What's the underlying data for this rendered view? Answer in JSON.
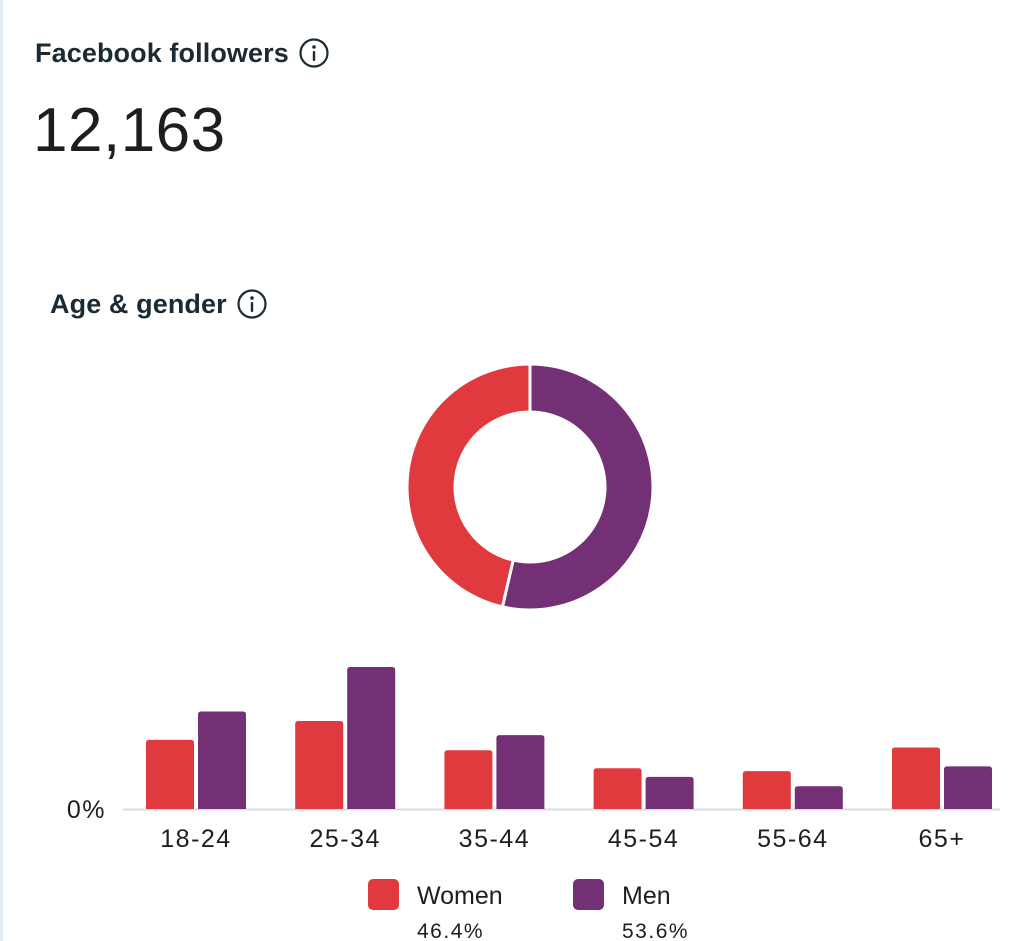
{
  "followers": {
    "title": "Facebook followers",
    "info_icon": "info-icon",
    "count": "12,163"
  },
  "age_gender": {
    "title": "Age & gender",
    "info_icon": "info-icon"
  },
  "colors": {
    "women": "#e0393e",
    "men": "#733075",
    "axis": "#d8dde3",
    "text": "#1c1e21"
  },
  "chart_data": [
    {
      "type": "pie",
      "variant": "donut",
      "labels": [
        "Women",
        "Men"
      ],
      "values": [
        46.4,
        53.6
      ],
      "title": ""
    },
    {
      "type": "bar",
      "categories": [
        "18-24",
        "25-34",
        "35-44",
        "45-54",
        "55-64",
        "65+"
      ],
      "series": [
        {
          "name": "Women",
          "values": [
            7.3,
            9.3,
            6.2,
            4.3,
            4.0,
            6.5
          ]
        },
        {
          "name": "Men",
          "values": [
            10.3,
            15.0,
            7.8,
            3.4,
            2.4,
            4.5
          ]
        }
      ],
      "ylim": [
        0,
        15
      ],
      "y_tick_labels": [
        "0%"
      ],
      "title": "",
      "xlabel": "",
      "ylabel": "",
      "legend": {
        "placement": "bottom",
        "entries": [
          {
            "label": "Women",
            "percent": "46.4%"
          },
          {
            "label": "Men",
            "percent": "53.6%"
          }
        ]
      }
    }
  ]
}
